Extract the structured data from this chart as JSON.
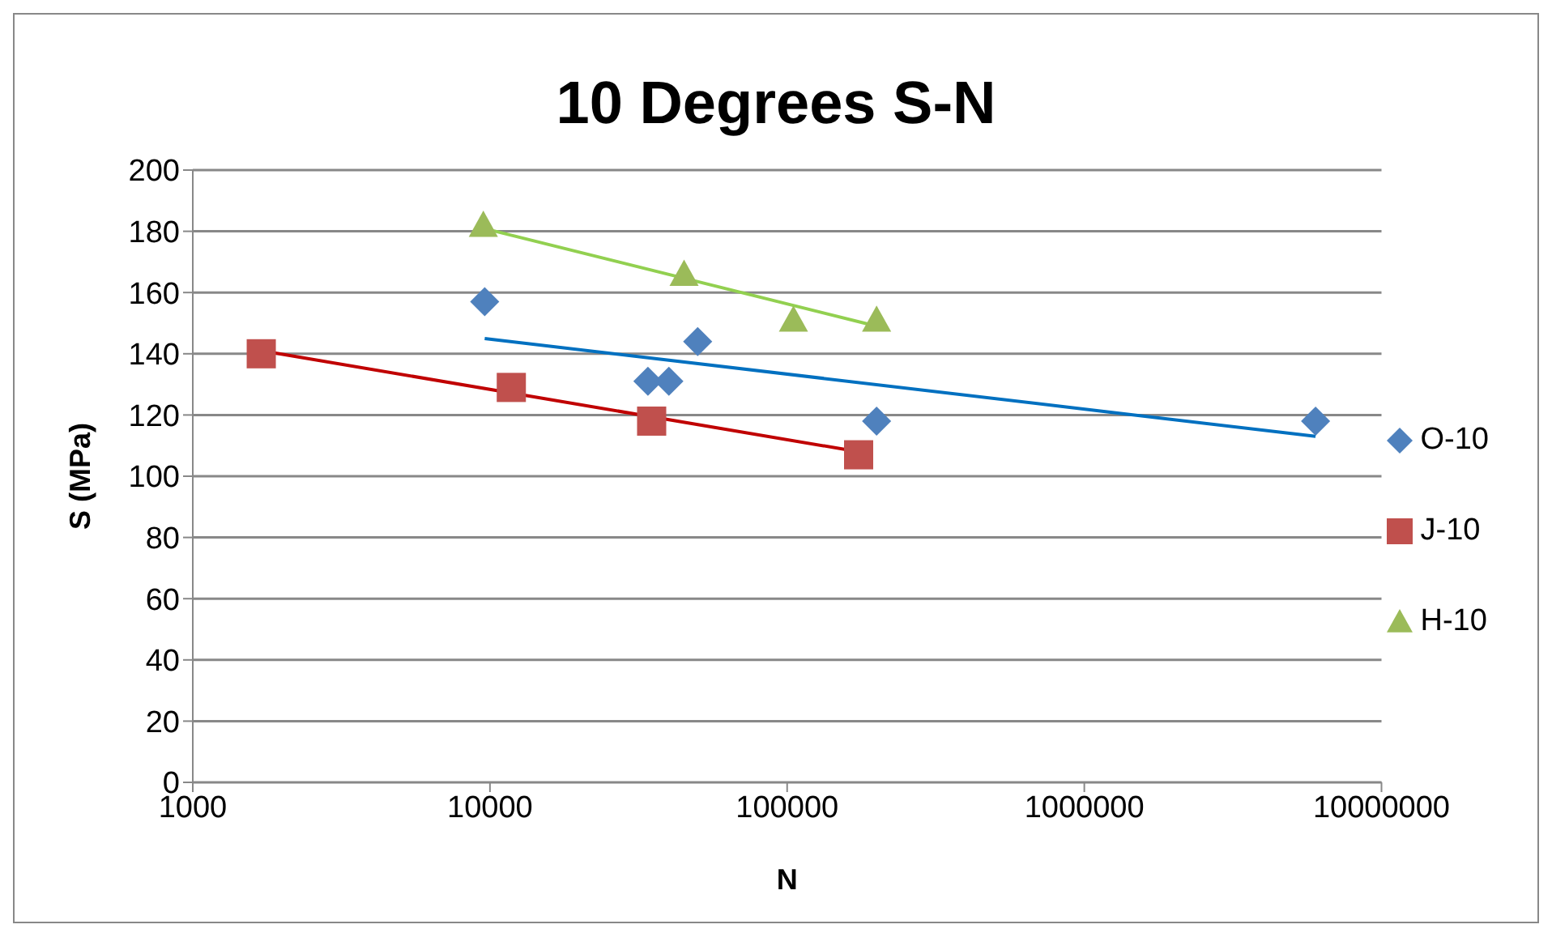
{
  "chart_data": {
    "type": "scatter",
    "title": "10 Degrees S-N",
    "xlabel": "N",
    "ylabel": "S (MPa)",
    "log": "x",
    "xlim": [
      1000,
      10000000
    ],
    "xticks": [
      1000,
      10000,
      100000,
      1000000,
      10000000
    ],
    "ylim": [
      0,
      200
    ],
    "yticks": [
      0,
      20,
      40,
      60,
      80,
      100,
      120,
      140,
      160,
      180,
      200
    ],
    "grid": "y",
    "legend": "right",
    "series": [
      {
        "name": "O-10",
        "color": "#4f81bd",
        "marker": "diamond",
        "x": [
          9600,
          34000,
          40000,
          50000,
          200000,
          6000000
        ],
        "values": [
          157,
          131,
          131,
          144,
          118,
          118
        ]
      },
      {
        "name": "J-10",
        "color": "#c0504d",
        "marker": "square",
        "x": [
          1700,
          11800,
          35000,
          174000
        ],
        "values": [
          140,
          129,
          118,
          107
        ]
      },
      {
        "name": "H-10",
        "color": "#9bbb59",
        "marker": "triangle",
        "x": [
          9500,
          45000,
          105000,
          200000
        ],
        "values": [
          182,
          166,
          151,
          151
        ]
      },
      {
        "type": "line",
        "color": "#0070c0",
        "marker": "none",
        "x": [
          9600,
          6000000
        ],
        "values": [
          145,
          113
        ]
      },
      {
        "type": "line",
        "color": "#c00000",
        "marker": "none",
        "x": [
          1700,
          174000
        ],
        "values": [
          141,
          108
        ]
      },
      {
        "type": "line",
        "color": "#92d050",
        "marker": "none",
        "x": [
          9500,
          200000
        ],
        "values": [
          181,
          149
        ]
      }
    ]
  }
}
